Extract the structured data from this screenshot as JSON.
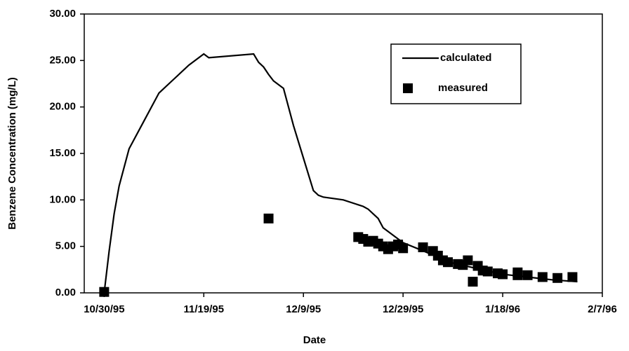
{
  "chart_data": {
    "type": "line",
    "xlabel": "Date",
    "ylabel": "Benzene Concentration (mg/L)",
    "xlim": [
      "1995-10-26",
      "1996-02-07"
    ],
    "xticks": [
      {
        "value": "1995-10-30",
        "label": "10/30/95"
      },
      {
        "value": "1995-11-19",
        "label": "11/19/95"
      },
      {
        "value": "1995-12-09",
        "label": "12/9/95"
      },
      {
        "value": "1995-12-29",
        "label": "12/29/95"
      },
      {
        "value": "1996-01-18",
        "label": "1/18/96"
      },
      {
        "value": "1996-02-07",
        "label": "2/7/96"
      }
    ],
    "ylim": [
      0,
      30
    ],
    "yticks": [
      {
        "value": 0,
        "label": "0.00"
      },
      {
        "value": 5,
        "label": "5.00"
      },
      {
        "value": 10,
        "label": "10.00"
      },
      {
        "value": 15,
        "label": "15.00"
      },
      {
        "value": 20,
        "label": "20.00"
      },
      {
        "value": 25,
        "label": "25.00"
      },
      {
        "value": 30,
        "label": "30.00"
      }
    ],
    "grid": false,
    "legend": "upper right",
    "series": [
      {
        "name": "calculated",
        "type": "line",
        "color": "#000000",
        "x": [
          "1995-10-30",
          "1995-10-31",
          "1995-11-01",
          "1995-11-02",
          "1995-11-04",
          "1995-11-07",
          "1995-11-10",
          "1995-11-13",
          "1995-11-16",
          "1995-11-19",
          "1995-11-20",
          "1995-11-29",
          "1995-11-30",
          "1995-12-01",
          "1995-12-02",
          "1995-12-03",
          "1995-12-05",
          "1995-12-07",
          "1995-12-09",
          "1995-12-11",
          "1995-12-12",
          "1995-12-13",
          "1995-12-17",
          "1995-12-21",
          "1995-12-22",
          "1995-12-24",
          "1995-12-25",
          "1995-12-27",
          "1995-12-29",
          "1996-01-03",
          "1996-01-08",
          "1996-01-13",
          "1996-01-18",
          "1996-01-23",
          "1996-01-28",
          "1996-02-02"
        ],
        "values": [
          0,
          4.5,
          8.5,
          11.5,
          15.5,
          18.5,
          21.5,
          23,
          24.5,
          25.7,
          25.3,
          25.7,
          24.8,
          24.3,
          23.5,
          22.8,
          22,
          18,
          14.5,
          11,
          10.5,
          10.3,
          10,
          9.3,
          9,
          8,
          7,
          6.2,
          5.4,
          4.3,
          3.2,
          2.6,
          2.0,
          1.7,
          1.4,
          1.2
        ]
      },
      {
        "name": "measured",
        "type": "scatter",
        "color": "#000000",
        "x": [
          "1995-10-30",
          "1995-12-02",
          "1995-12-20",
          "1995-12-21",
          "1995-12-22",
          "1995-12-23",
          "1995-12-24",
          "1995-12-25",
          "1995-12-26",
          "1995-12-27",
          "1995-12-28",
          "1995-12-29",
          "1996-01-02",
          "1996-01-04",
          "1996-01-05",
          "1996-01-06",
          "1996-01-07",
          "1996-01-09",
          "1996-01-10",
          "1996-01-11",
          "1996-01-12",
          "1996-01-13",
          "1996-01-14",
          "1996-01-15",
          "1996-01-17",
          "1996-01-18",
          "1996-01-21",
          "1996-01-21",
          "1996-01-23",
          "1996-01-26",
          "1996-01-29",
          "1996-02-01"
        ],
        "values": [
          0.1,
          8.0,
          6.0,
          5.8,
          5.5,
          5.6,
          5.3,
          5.0,
          4.7,
          5.0,
          5.2,
          4.8,
          4.9,
          4.5,
          4.0,
          3.5,
          3.3,
          3.1,
          3.0,
          3.5,
          1.2,
          2.9,
          2.4,
          2.3,
          2.1,
          2.0,
          2.2,
          1.9,
          1.9,
          1.7,
          1.6,
          1.7
        ]
      }
    ]
  }
}
